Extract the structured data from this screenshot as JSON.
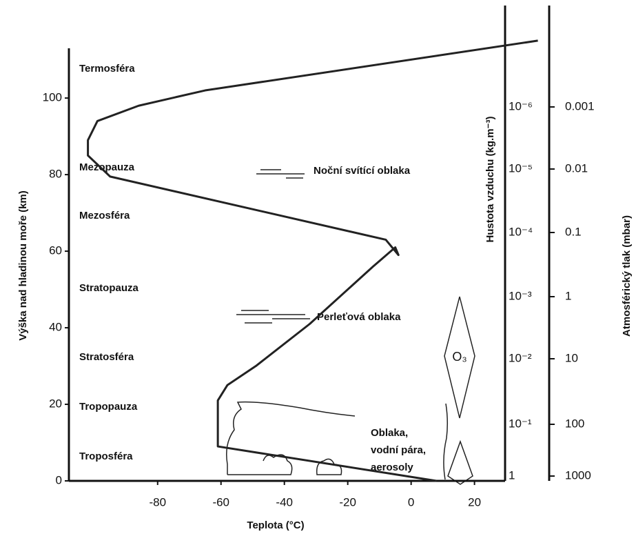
{
  "chart_data": {
    "type": "line",
    "x_label": "Teplota (°C)",
    "y_label": "Výška nad hladinou moře (km)",
    "density_label": "Hustota vzduchu (kg.m⁻³)",
    "pressure_label": "Atmosférický tlak (mbar)",
    "x": [
      8,
      -61,
      -61,
      -58,
      -49,
      -32,
      -12,
      -5,
      -4,
      -8,
      -95,
      -102,
      -102,
      -99,
      -86,
      -65,
      40
    ],
    "values": [
      0,
      9,
      21,
      25,
      30,
      41,
      56,
      61,
      59,
      63,
      79.5,
      85,
      89,
      94,
      98,
      102,
      115
    ],
    "color": "#222222",
    "xlim": [
      -108,
      29
    ],
    "ylim": [
      0,
      113
    ],
    "xticks": [
      -80,
      -60,
      -40,
      -20,
      0,
      20
    ],
    "yticks": [
      0,
      20,
      40,
      60,
      80,
      100
    ],
    "layers": [
      "Termosféra",
      "Mezopauza",
      "Mezosféra",
      "Stratopauza",
      "Stratosféra",
      "Tropopauza",
      "Troposféra"
    ],
    "density_ticks": [
      "10⁻⁶",
      "10⁻⁵",
      "10⁻⁴",
      "10⁻³",
      "10⁻²",
      "10⁻¹",
      "1"
    ],
    "pressure_ticks": [
      "0.001",
      "0.01",
      "0.1",
      "1",
      "10",
      "100",
      "1000"
    ],
    "annotations": [
      "Noční svítící oblaka",
      "Perleťová oblaka",
      "Oblaka,",
      "vodní pára,",
      "aerosoly",
      "O₃"
    ]
  }
}
